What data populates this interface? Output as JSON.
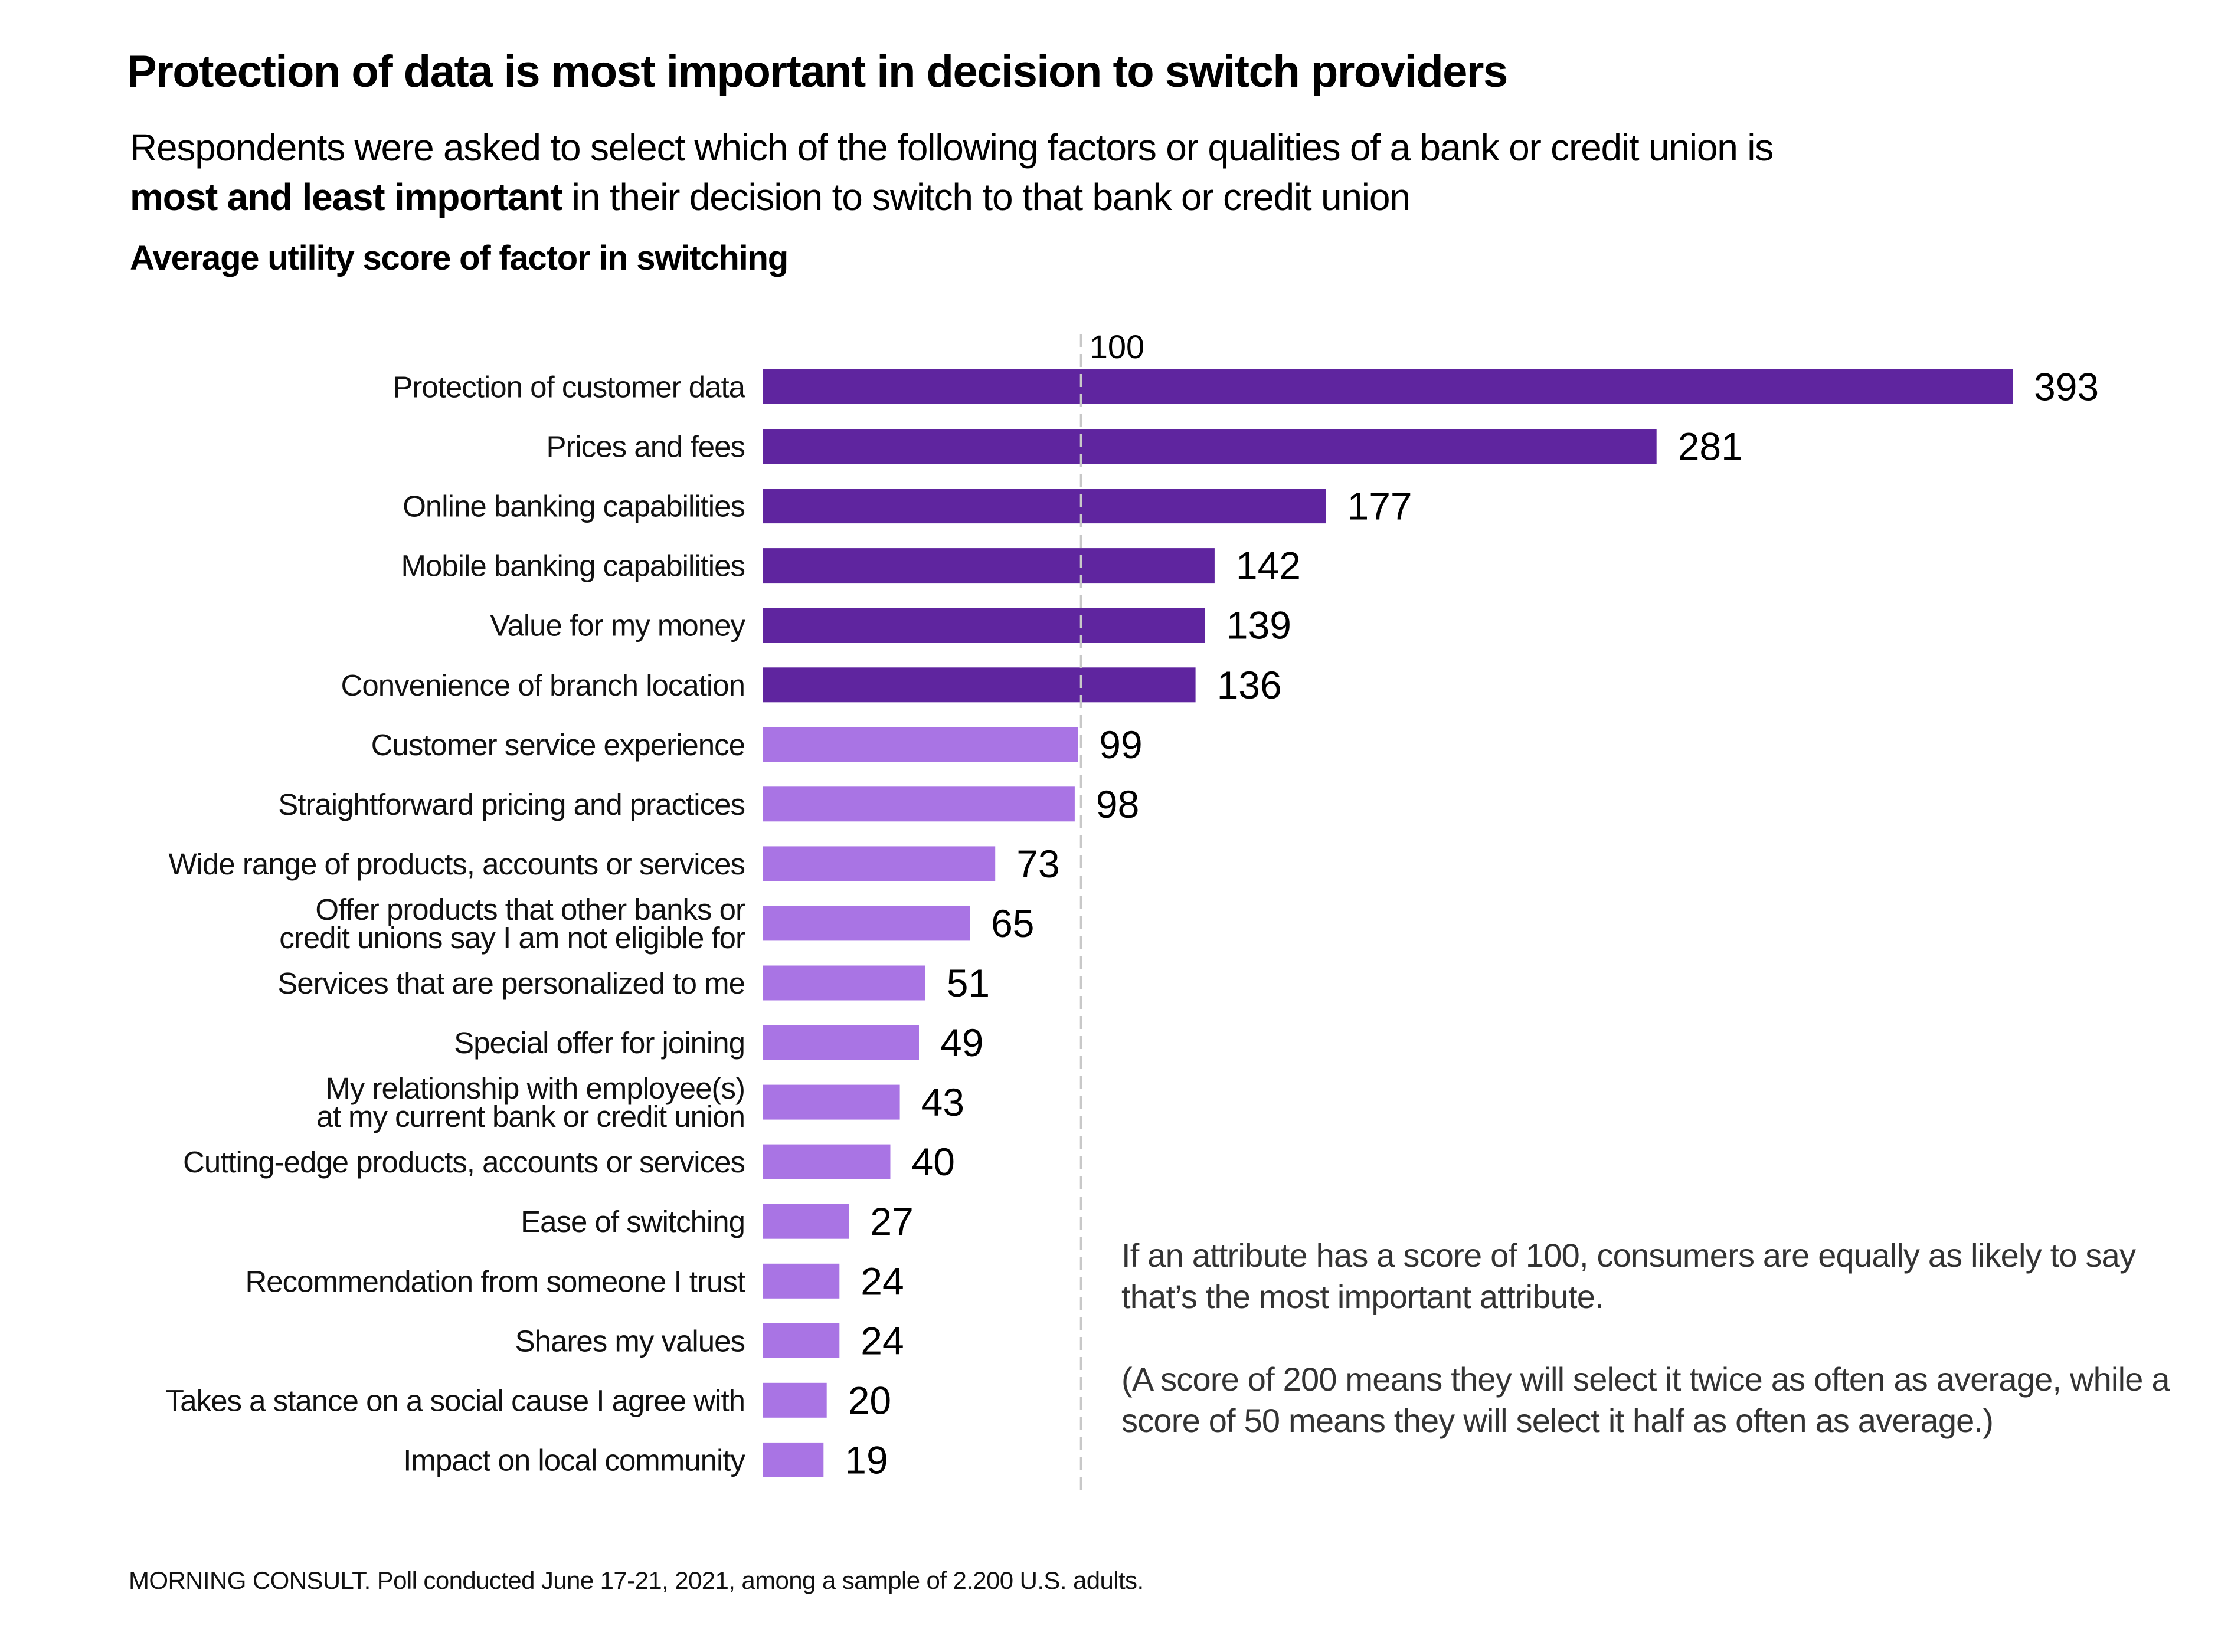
{
  "header": {
    "title": "Protection of data is most important in decision to switch providers",
    "subtitle_line1": "Respondents were asked to select which of the following factors or qualities of a bank or credit union is",
    "subtitle_bold": "most and least important",
    "subtitle_rest": " in their decision to switch to that bank or credit union",
    "measure_label": "Average utility score of factor in switching"
  },
  "note": {
    "paragraph1": "If an attribute has a score of 100, consumers are equally as likely to say that’s the most important attribute.",
    "paragraph2": "(A score of 200 means they will select it twice as often as average, while a score of 50 means they will select it half as often as average.)"
  },
  "footer": {
    "source": "MORNING CONSULT. Poll conducted June 17-21, 2021, among a sample of 2.200 U.S. adults."
  },
  "colors": {
    "above_average": "#5F259F",
    "below_average": "#A974E4",
    "reference_line": "#C8C8C8"
  },
  "chart_data": {
    "type": "bar",
    "orientation": "horizontal",
    "title": "Protection of data is most important in decision to switch providers",
    "xlabel": "Average utility score of factor in switching",
    "ylabel": "",
    "xlim": [
      0,
      393
    ],
    "grid": false,
    "legend": "none",
    "reference_line": {
      "value": 100,
      "label": "100",
      "style": "dashed"
    },
    "categories": [
      [
        "Protection of customer data"
      ],
      [
        "Prices and fees"
      ],
      [
        "Online banking capabilities"
      ],
      [
        "Mobile banking capabilities"
      ],
      [
        "Value for my money"
      ],
      [
        "Convenience of branch location"
      ],
      [
        "Customer service experience"
      ],
      [
        "Straightforward pricing and practices"
      ],
      [
        "Wide range of products, accounts or services"
      ],
      [
        "Offer products that other banks or",
        "credit unions say I am not eligible for"
      ],
      [
        "Services that are personalized to me"
      ],
      [
        "Special offer for joining"
      ],
      [
        "My relationship with employee(s)",
        "at my current bank or credit union"
      ],
      [
        "Cutting-edge products, accounts or services"
      ],
      [
        "Ease of switching"
      ],
      [
        "Recommendation from someone I trust"
      ],
      [
        "Shares my values"
      ],
      [
        "Takes a stance on a social cause I agree with"
      ],
      [
        "Impact on local community"
      ]
    ],
    "values": [
      393,
      281,
      177,
      142,
      139,
      136,
      99,
      98,
      73,
      65,
      51,
      49,
      43,
      40,
      27,
      24,
      24,
      20,
      19
    ],
    "color_rule": "values above 100 use above_average color, values below 100 use below_average color"
  }
}
